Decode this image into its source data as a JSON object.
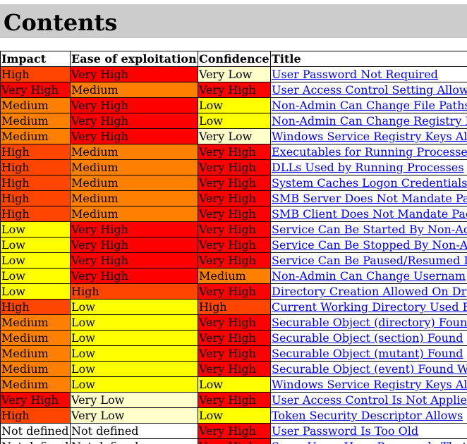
{
  "page": {
    "title": "Contents"
  },
  "colors": {
    "Very High": "#ff0000",
    "High": "#ff4500",
    "Medium": "#ff8000",
    "Low": "#ffff00",
    "Very Low": "#ffffcc",
    "Not defined": "#ffffff"
  },
  "columns": [
    "Impact",
    "Ease of exploitation",
    "Confidence",
    "Title"
  ],
  "rows": [
    {
      "impact": "High",
      "ease": "Very High",
      "confidence": "Very Low",
      "title": "User Password Not Required"
    },
    {
      "impact": "Very High",
      "ease": "Medium",
      "confidence": "Very High",
      "title": "User Access Control Setting Allow"
    },
    {
      "impact": "Medium",
      "ease": "Very High",
      "confidence": "Low",
      "title": "Non-Admin Can Change File Paths"
    },
    {
      "impact": "Medium",
      "ease": "Very High",
      "confidence": "Low",
      "title": "Non-Admin Can Change Registry I"
    },
    {
      "impact": "Medium",
      "ease": "Very High",
      "confidence": "Very Low",
      "title": "Windows Service Registry Keys Al"
    },
    {
      "impact": "High",
      "ease": "Medium",
      "confidence": "Very High",
      "title": "Executables for Running Processe"
    },
    {
      "impact": "High",
      "ease": "Medium",
      "confidence": "Very High",
      "title": "DLLs Used by Running Processes"
    },
    {
      "impact": "High",
      "ease": "Medium",
      "confidence": "Very High",
      "title": "System Caches Logon Credentials"
    },
    {
      "impact": "High",
      "ease": "Medium",
      "confidence": "Very High",
      "title": "SMB Server Does Not Mandate Pa"
    },
    {
      "impact": "High",
      "ease": "Medium",
      "confidence": "Very High",
      "title": "SMB Client Does Not Mandate Pac"
    },
    {
      "impact": "Low",
      "ease": "Very High",
      "confidence": "Very High",
      "title": "Service Can Be Started By Non-Ac"
    },
    {
      "impact": "Low",
      "ease": "Very High",
      "confidence": "Very High",
      "title": "Service Can Be Stopped By Non-A"
    },
    {
      "impact": "Low",
      "ease": "Very High",
      "confidence": "Very High",
      "title": "Service Can Be Paused/Resumed I"
    },
    {
      "impact": "Low",
      "ease": "Very High",
      "confidence": "Medium",
      "title": "Non-Admin Can Change Usernam"
    },
    {
      "impact": "Low",
      "ease": "High",
      "confidence": "Very High",
      "title": "Directory Creation Allowed On Dr"
    },
    {
      "impact": "High",
      "ease": "Low",
      "confidence": "High",
      "title": "Current Working Directory Used F"
    },
    {
      "impact": "Medium",
      "ease": "Low",
      "confidence": "Very High",
      "title": "Securable Object (directory) Foun"
    },
    {
      "impact": "Medium",
      "ease": "Low",
      "confidence": "Very High",
      "title": "Securable Object (section) Found"
    },
    {
      "impact": "Medium",
      "ease": "Low",
      "confidence": "Very High",
      "title": "Securable Object (mutant) Found"
    },
    {
      "impact": "Medium",
      "ease": "Low",
      "confidence": "Very High",
      "title": "Securable Object (event) Found W"
    },
    {
      "impact": "Medium",
      "ease": "Low",
      "confidence": "Low",
      "title": "Windows Service Registry Keys Al"
    },
    {
      "impact": "Very High",
      "ease": "Very Low",
      "confidence": "Very High",
      "title": "User Access Control Is Not Applie"
    },
    {
      "impact": "High",
      "ease": "Very Low",
      "confidence": "Low",
      "title": "Token Security Descriptor Allows"
    },
    {
      "impact": "Not defined",
      "ease": "Not defined",
      "confidence": "Very High",
      "title": "User Password Is Too Old"
    },
    {
      "impact": "Not defined",
      "ease": "Not defined",
      "confidence": "Very High",
      "title": "Some Users Have Passwords That"
    }
  ]
}
